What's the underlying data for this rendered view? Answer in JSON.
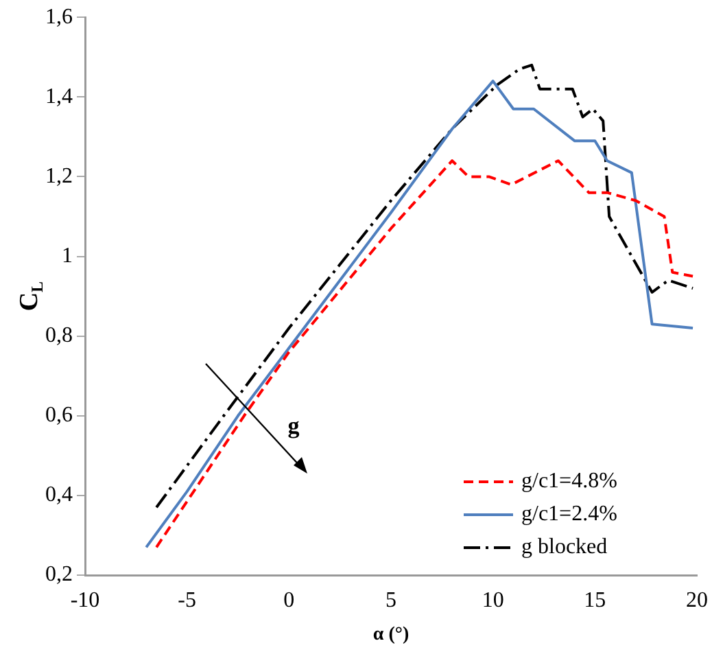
{
  "chart_data": {
    "type": "line",
    "xlabel": "α (°)",
    "ylabel": "C$_{L}$",
    "xlim": [
      -10,
      20
    ],
    "xticks": [
      -10,
      -5,
      0,
      5,
      10,
      15,
      20
    ],
    "ylim": [
      0.2,
      1.6
    ],
    "yticks": [
      {
        "value": 0.2,
        "label": "0,2"
      },
      {
        "value": 0.4,
        "label": "0,4"
      },
      {
        "value": 0.6,
        "label": "0,6"
      },
      {
        "value": 0.8,
        "label": "0,8"
      },
      1,
      {
        "value": 1.2,
        "label": "1,2"
      },
      {
        "value": 1.4,
        "label": "1,4"
      },
      {
        "value": 1.6,
        "label": "1,6"
      }
    ],
    "grid": false,
    "legend": "bottom right",
    "marker": "none",
    "annotations": [
      "g"
    ],
    "series": [
      {
        "name": "g/c1=4.8%",
        "color": "#ff0000",
        "line_style": "dashed",
        "x": [
          -6.5,
          -2.2,
          0,
          5,
          8,
          8.8,
          9.8,
          10.9,
          13.2,
          14.7,
          15.6,
          17,
          18.4,
          18.8,
          19.8
        ],
        "values": [
          0.27,
          0.6,
          0.76,
          1.07,
          1.24,
          1.2,
          1.2,
          1.18,
          1.24,
          1.16,
          1.16,
          1.14,
          1.1,
          0.96,
          0.95
        ]
      },
      {
        "name": "g/c1=2.4%",
        "color": "#4f7fbe",
        "line_style": "solid",
        "x": [
          -7,
          -5,
          -2.5,
          0,
          5,
          8,
          10,
          11,
          12,
          14,
          15,
          15.6,
          16.8,
          17.8,
          19.8
        ],
        "values": [
          0.27,
          0.41,
          0.6,
          0.77,
          1.11,
          1.32,
          1.44,
          1.37,
          1.37,
          1.29,
          1.29,
          1.24,
          1.21,
          0.83,
          0.82
        ]
      },
      {
        "name": "g blocked",
        "color": "#000000",
        "line_style": "dashdot",
        "x": [
          -6.5,
          -3.2,
          0,
          5,
          8,
          10.2,
          11.3,
          11.9,
          12.3,
          13.9,
          14.4,
          14.9,
          15.4,
          15.7,
          17.8,
          18.6,
          19.8
        ],
        "values": [
          0.37,
          0.6,
          0.82,
          1.14,
          1.32,
          1.43,
          1.47,
          1.48,
          1.42,
          1.42,
          1.35,
          1.37,
          1.34,
          1.1,
          0.91,
          0.94,
          0.92
        ]
      }
    ]
  }
}
